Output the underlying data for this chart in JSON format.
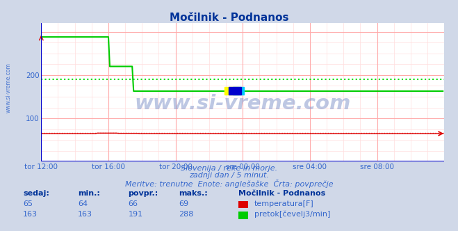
{
  "title": "Močilnik - Podnanos",
  "bg_color": "#d0d8e8",
  "plot_bg_color": "#ffffff",
  "grid_color_major": "#ffaaaa",
  "grid_color_minor": "#ffdddd",
  "ylim": [
    0,
    320
  ],
  "xlim": [
    0,
    288
  ],
  "xtick_labels": [
    "tor 12:00",
    "tor 16:00",
    "tor 20:00",
    "sre 00:00",
    "sre 04:00",
    "sre 08:00"
  ],
  "xtick_positions": [
    0,
    48,
    96,
    144,
    192,
    240
  ],
  "temp_color": "#dd0000",
  "flow_color": "#00cc00",
  "avg_temp_color": "#dd4444",
  "avg_flow_color": "#00dd00",
  "border_color": "#0000cc",
  "temp_avg": 66,
  "flow_avg": 191,
  "temp_min": 64,
  "temp_max": 69,
  "temp_current": 65,
  "flow_min": 163,
  "flow_max": 288,
  "flow_current": 163,
  "flow_povpr": 191,
  "subtitle1": "Slovenija / reke in morje.",
  "subtitle2": "zadnji dan / 5 minut.",
  "subtitle3": "Meritve: trenutne  Enote: anglešaške  Črta: povprečje",
  "legend_title": "Močilnik - Podnanos",
  "legend_temp": "temperatura[F]",
  "legend_flow": "pretok[čevelj3/min]",
  "label_sedaj": "sedaj:",
  "label_min": "min.:",
  "label_povpr": "povpr.:",
  "label_maks": "maks.:",
  "watermark": "www.si-vreme.com",
  "title_color": "#003399",
  "text_color": "#3366cc",
  "label_color": "#003399",
  "side_watermark": "www.si-vreme.com"
}
